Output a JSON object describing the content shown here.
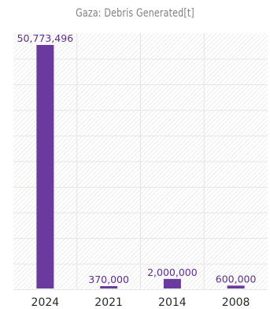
{
  "chart_data": {
    "type": "bar",
    "title": "Gaza: Debris Generated[t]",
    "categories": [
      "2024",
      "2021",
      "2014",
      "2008"
    ],
    "values": [
      50773496,
      370000,
      2000000,
      600000
    ],
    "value_labels": [
      "50,773,496",
      "370,000",
      "2,000,000",
      "600,000"
    ],
    "xlabel": "",
    "ylabel": "",
    "ylim": [
      0,
      50773496
    ],
    "grid": true,
    "legend": "none",
    "bar_color": "#6b3a9e",
    "label_color": "#5c2d91"
  }
}
